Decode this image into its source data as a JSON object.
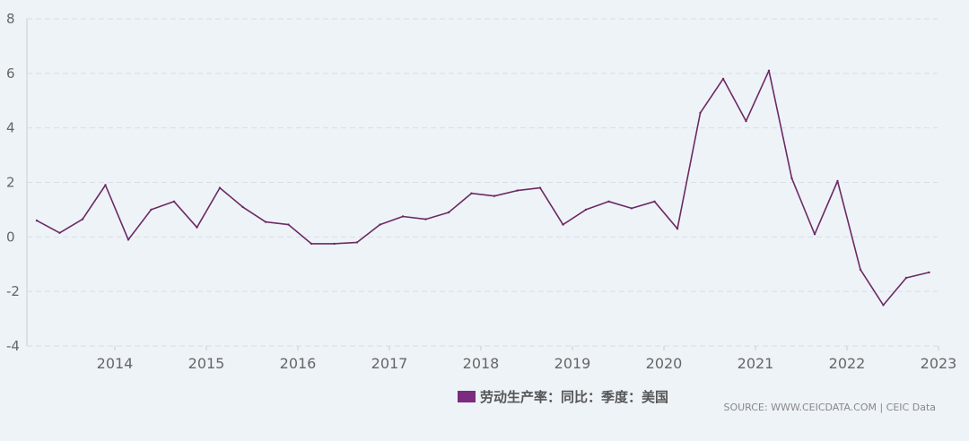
{
  "chart_data": {
    "type": "line",
    "title": "",
    "xlabel": "",
    "ylabel": "",
    "ylim": [
      -4,
      8
    ],
    "yticks": [
      8,
      6,
      4,
      2,
      0,
      -2,
      -4
    ],
    "ytick_labels": [
      "8",
      "6",
      "4",
      "2",
      "0",
      "-2",
      "-4"
    ],
    "xticks": [
      "2014",
      "2015",
      "2016",
      "2017",
      "2018",
      "2019",
      "2020",
      "2021",
      "2022",
      "2023"
    ],
    "grid": true,
    "legend": "bottom-center",
    "colors": {
      "series": "#6b2a63",
      "legend_swatch": "#7b2c7f",
      "grid": "#d9dee5",
      "axis": "#c8ced6"
    },
    "series": [
      {
        "name": "劳动生产率：同比：季度：美国",
        "x": [
          "2013-Q1",
          "2013-Q2",
          "2013-Q3",
          "2013-Q4",
          "2014-Q1",
          "2014-Q2",
          "2014-Q3",
          "2014-Q4",
          "2015-Q1",
          "2015-Q2",
          "2015-Q3",
          "2015-Q4",
          "2016-Q1",
          "2016-Q2",
          "2016-Q3",
          "2016-Q4",
          "2017-Q1",
          "2017-Q2",
          "2017-Q3",
          "2017-Q4",
          "2018-Q1",
          "2018-Q2",
          "2018-Q3",
          "2018-Q4",
          "2019-Q1",
          "2019-Q2",
          "2019-Q3",
          "2019-Q4",
          "2020-Q1",
          "2020-Q2",
          "2020-Q3",
          "2020-Q4",
          "2021-Q1",
          "2021-Q2",
          "2021-Q3",
          "2021-Q4",
          "2022-Q1",
          "2022-Q2",
          "2022-Q3",
          "2022-Q4"
        ],
        "values": [
          0.6,
          0.15,
          0.65,
          1.9,
          -0.1,
          1.0,
          1.3,
          0.35,
          1.8,
          1.1,
          0.55,
          0.45,
          -0.25,
          -0.25,
          -0.2,
          0.45,
          0.75,
          0.65,
          0.9,
          1.6,
          1.5,
          1.7,
          1.8,
          0.45,
          1.0,
          1.3,
          1.05,
          1.3,
          0.3,
          4.55,
          5.8,
          4.25,
          6.1,
          2.15,
          0.1,
          2.05,
          -1.2,
          -2.5,
          -1.5,
          -1.3
        ]
      }
    ]
  },
  "source": "SOURCE: WWW.CEICDATA.COM | CEIC Data"
}
